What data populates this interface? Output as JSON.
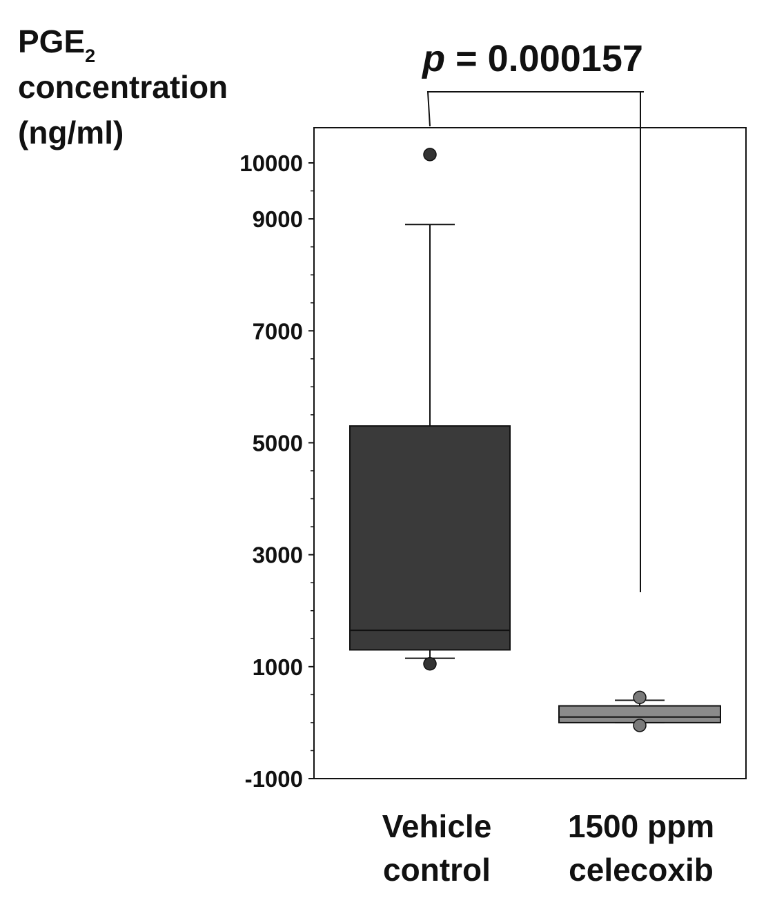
{
  "chart_data": {
    "type": "box",
    "ylabel": {
      "main": "PGE",
      "subscript": "2",
      "line2": "concentration",
      "line3": "(ng/ml)"
    },
    "ylim": [
      -1000,
      10700
    ],
    "yticks": [
      10000,
      9000,
      7000,
      5000,
      3000,
      1000,
      -1000
    ],
    "yticks_minor": [
      9500,
      8500,
      8000,
      7500,
      6500,
      6000,
      5500,
      4500,
      4000,
      3500,
      2500,
      2000,
      1500,
      500,
      0,
      -500
    ],
    "categories": [
      "Vehicle control",
      "1500 ppm celecoxib"
    ],
    "category_labels": [
      [
        "Vehicle",
        "control"
      ],
      [
        "1500 ppm",
        "celecoxib"
      ]
    ],
    "series": [
      {
        "q1": 1300,
        "median": 1650,
        "q3": 5300,
        "whisker_low": 1150,
        "whisker_high": 8900,
        "outliers": [
          10150,
          1050
        ],
        "color": "#3a3a3a"
      },
      {
        "q1": 0,
        "median": 100,
        "q3": 300,
        "whisker_low": 0,
        "whisker_high": 400,
        "outliers": [
          450,
          -50
        ],
        "color": "#8a8a8a"
      }
    ],
    "annotation": {
      "p_symbol": "p",
      "p_text": " = 0.000157"
    },
    "grid": false
  }
}
